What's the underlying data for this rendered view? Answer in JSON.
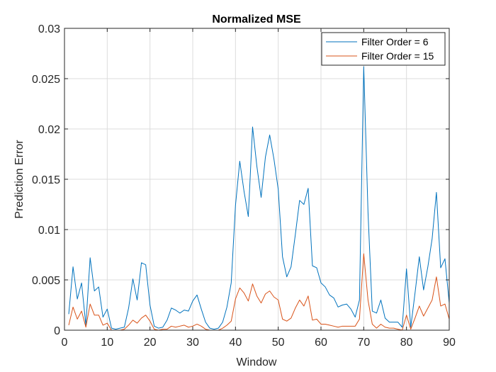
{
  "chart_data": {
    "type": "line",
    "title": "Normalized MSE",
    "xlabel": "Window",
    "ylabel": "Prediction Error",
    "xlim": [
      0,
      90
    ],
    "ylim": [
      0,
      0.03
    ],
    "xticks": [
      0,
      10,
      20,
      30,
      40,
      50,
      60,
      70,
      80,
      90
    ],
    "yticks": [
      0,
      0.005,
      0.01,
      0.015,
      0.02,
      0.025,
      0.03
    ],
    "xtick_labels": [
      "0",
      "10",
      "20",
      "30",
      "40",
      "50",
      "60",
      "70",
      "80",
      "90"
    ],
    "ytick_labels": [
      "0",
      "0.005",
      "0.01",
      "0.015",
      "0.02",
      "0.025",
      "0.03"
    ],
    "grid": true,
    "legend_position": "top-right",
    "x": [
      1,
      2,
      3,
      4,
      5,
      6,
      7,
      8,
      9,
      10,
      11,
      12,
      13,
      14,
      15,
      16,
      17,
      18,
      19,
      20,
      21,
      22,
      23,
      24,
      25,
      26,
      27,
      28,
      29,
      30,
      31,
      32,
      33,
      34,
      35,
      36,
      37,
      38,
      39,
      40,
      41,
      42,
      43,
      44,
      45,
      46,
      47,
      48,
      49,
      50,
      51,
      52,
      53,
      54,
      55,
      56,
      57,
      58,
      59,
      60,
      61,
      62,
      63,
      64,
      65,
      66,
      67,
      68,
      69,
      70,
      71,
      72,
      73,
      74,
      75,
      76,
      77,
      78,
      79,
      80,
      81,
      82,
      83,
      84,
      85,
      86,
      87,
      88,
      89,
      90
    ],
    "series": [
      {
        "name": "Filter Order = 6",
        "color": "#0072BD",
        "values": [
          0.0016,
          0.0063,
          0.0031,
          0.0047,
          0.0005,
          0.0072,
          0.0039,
          0.0043,
          0.0013,
          0.0021,
          0.0002,
          0.0001,
          0.0002,
          0.0003,
          0.0022,
          0.0051,
          0.003,
          0.0067,
          0.0065,
          0.0025,
          0.0004,
          0.0002,
          0.0003,
          0.001,
          0.0022,
          0.002,
          0.0017,
          0.002,
          0.0019,
          0.0029,
          0.0035,
          0.0021,
          0.0008,
          0.0002,
          0.0001,
          0.0002,
          0.0008,
          0.0023,
          0.0047,
          0.0124,
          0.0168,
          0.0138,
          0.0113,
          0.0202,
          0.0163,
          0.0132,
          0.0172,
          0.0194,
          0.017,
          0.014,
          0.0073,
          0.0053,
          0.0063,
          0.0095,
          0.0129,
          0.0125,
          0.0141,
          0.0064,
          0.0062,
          0.0047,
          0.0043,
          0.0035,
          0.0032,
          0.0023,
          0.0025,
          0.0026,
          0.0021,
          0.0013,
          0.003,
          0.0262,
          0.0117,
          0.0019,
          0.0017,
          0.003,
          0.0012,
          0.0008,
          0.0008,
          0.0008,
          0.0003,
          0.0061,
          0.0003,
          0.0037,
          0.0073,
          0.004,
          0.0063,
          0.0091,
          0.0137,
          0.0062,
          0.0071,
          0.0027
        ]
      },
      {
        "name": "Filter Order = 15",
        "color": "#D95319",
        "values": [
          0.0005,
          0.0023,
          0.0011,
          0.0019,
          0.0003,
          0.0026,
          0.0015,
          0.0015,
          0.0005,
          0.0007,
          0.0,
          0.0,
          0.0,
          0.0001,
          0.0005,
          0.001,
          0.0007,
          0.0012,
          0.0015,
          0.0009,
          0.0001,
          0.0,
          0.0001,
          0.0001,
          0.0004,
          0.0003,
          0.0004,
          0.0005,
          0.0003,
          0.0004,
          0.0006,
          0.0004,
          0.0001,
          0.0,
          0.0,
          0.0,
          0.0002,
          0.0005,
          0.0009,
          0.0031,
          0.0042,
          0.0037,
          0.0029,
          0.0046,
          0.0034,
          0.0027,
          0.0036,
          0.0039,
          0.0033,
          0.003,
          0.0011,
          0.0009,
          0.0012,
          0.0022,
          0.003,
          0.0024,
          0.0034,
          0.001,
          0.0011,
          0.0006,
          0.0006,
          0.0005,
          0.0004,
          0.0003,
          0.0004,
          0.0004,
          0.0004,
          0.0004,
          0.0011,
          0.0076,
          0.003,
          0.0006,
          0.0002,
          0.0006,
          0.0003,
          0.0002,
          0.0002,
          0.0001,
          0.0,
          0.0015,
          0.0001,
          0.0012,
          0.0024,
          0.0014,
          0.0022,
          0.003,
          0.0053,
          0.0024,
          0.0026,
          0.0011
        ]
      }
    ]
  }
}
